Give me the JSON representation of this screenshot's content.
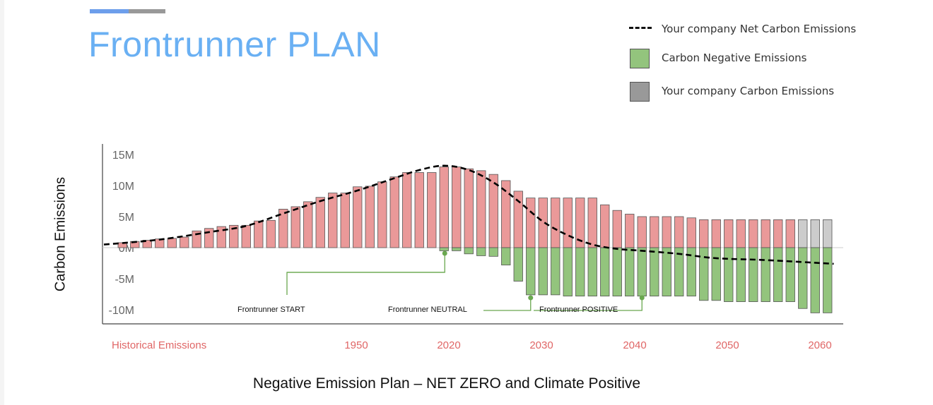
{
  "title": "Frontrunner PLAN",
  "caption": "Negative Emission Plan – NET ZERO and Climate Positive",
  "colors": {
    "title": "#6ab0f3",
    "accent_blue": "#6d9eeb",
    "accent_gray": "#999999",
    "emission_bar": "#ea9999",
    "future_emission_bar": "#cccccc",
    "negative_bar": "#93c47d",
    "milestone": "#6aa84f",
    "net_line": "#000000",
    "x_tick_text": "#e06666",
    "y_tick_text": "#666666"
  },
  "legend": {
    "items": [
      {
        "label": "Your company Net Carbon Emissions",
        "swatch": "dashed-line",
        "color": "#000000"
      },
      {
        "label": "Carbon Negative Emissions",
        "swatch": "box",
        "color": "#93c47d"
      },
      {
        "label": "Your company Carbon Emissions",
        "swatch": "box",
        "color": "#999999"
      }
    ]
  },
  "chart_data": {
    "type": "bar",
    "title": "",
    "ylabel": "Carbon Emissions",
    "xlabel": "",
    "ylim": [
      -12,
      17
    ],
    "yticks": [
      15,
      10,
      5,
      0,
      -5,
      -10
    ],
    "ytick_labels": [
      "15M",
      "10M",
      "5M",
      "0M",
      "-5M",
      "-10M"
    ],
    "xtick_labels": [
      "Historical Emissions",
      "1950",
      "2020",
      "2030",
      "2040",
      "2050",
      "2060"
    ],
    "grid": false,
    "legend_position": "top-right",
    "series": [
      {
        "name": "Your company Carbon Emissions",
        "values": [
          0.8,
          1.0,
          1.2,
          1.4,
          1.5,
          1.7,
          2.7,
          3.1,
          3.4,
          3.6,
          3.6,
          4.3,
          4.4,
          6.2,
          6.6,
          7.4,
          8.1,
          8.8,
          8.8,
          9.8,
          9.9,
          10.6,
          11.4,
          12.1,
          12.1,
          12.1,
          13.0,
          13.0,
          12.7,
          12.4,
          11.8,
          10.8,
          9.1,
          8.0,
          8.0,
          8.0,
          8.0,
          8.0,
          8.0,
          6.9,
          6.0,
          5.4,
          5.0,
          5.0,
          5.0,
          5.0,
          4.8,
          4.5,
          4.5,
          4.5,
          4.5,
          4.5,
          4.5,
          4.5,
          4.5,
          4.5,
          4.5,
          4.5
        ]
      },
      {
        "name": "Carbon Negative Emissions",
        "values": [
          0,
          0,
          0,
          0,
          0,
          0,
          0,
          0,
          0,
          0,
          0,
          0,
          0,
          0,
          0,
          0,
          0,
          0,
          0,
          0,
          0,
          0,
          0,
          0,
          0,
          0,
          -0.5,
          -0.5,
          -1.0,
          -1.3,
          -1.4,
          -2.8,
          -5.4,
          -7.6,
          -7.6,
          -7.6,
          -7.8,
          -7.8,
          -7.8,
          -7.8,
          -7.8,
          -7.8,
          -7.8,
          -7.8,
          -7.8,
          -7.8,
          -7.8,
          -8.5,
          -8.5,
          -8.7,
          -8.7,
          -8.7,
          -8.7,
          -8.7,
          -8.7,
          -9.8,
          -10.5,
          -10.5
        ]
      }
    ],
    "net_line": {
      "name": "Your company Net Carbon Emissions",
      "style": "dashed",
      "x_index": [
        -1.5,
        3,
        7,
        10,
        13,
        16,
        19,
        22,
        24,
        26,
        28,
        30,
        32,
        34,
        36,
        38,
        40,
        42,
        45,
        48,
        52,
        57.5
      ],
      "values": [
        0.5,
        1.3,
        2.5,
        3.5,
        5.5,
        7.5,
        9.2,
        11.2,
        12.5,
        13.2,
        12.5,
        10.5,
        7.5,
        4.2,
        2.0,
        0.5,
        -0.2,
        -0.5,
        -1.0,
        -1.7,
        -2.0,
        -2.6
      ]
    },
    "milestones": [
      {
        "label": "Frontrunner START",
        "anchor_index": 13,
        "anchor_value": -7.5
      },
      {
        "label": "Frontrunner NEUTRAL",
        "anchor_index": 26,
        "anchor_value": -1.0
      },
      {
        "label": "Frontrunner POSITIVE",
        "anchor_index": 33,
        "anchor_value": -8.3,
        "end_index": 42,
        "end_value": -8.3
      }
    ]
  }
}
